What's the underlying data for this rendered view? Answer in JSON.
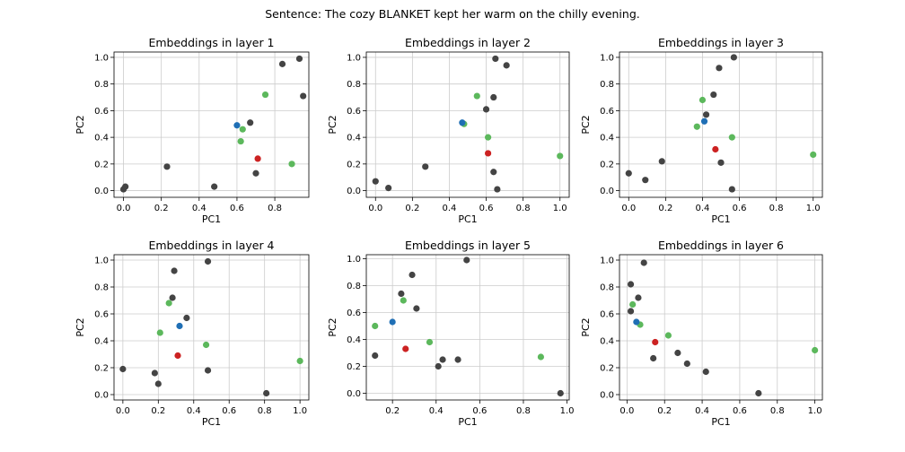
{
  "suptitle": "Sentence: The cozy BLANKET kept her warm on the chilly evening.",
  "colors": {
    "other": "#444444",
    "green": "#5cb85c",
    "blue": "#1f6fb5",
    "red": "#cc2222",
    "grid": "#cccccc"
  },
  "chart_data": [
    {
      "type": "scatter",
      "title": "Embeddings in layer 1",
      "xlabel": "PC1",
      "ylabel": "PC2",
      "xlim": [
        -0.05,
        0.98
      ],
      "ylim": [
        -0.05,
        1.04
      ],
      "xticks": [
        0.0,
        0.2,
        0.4,
        0.6,
        0.8
      ],
      "yticks": [
        0.0,
        0.2,
        0.4,
        0.6,
        0.8,
        1.0
      ],
      "tick_labels_x": [
        "0.0",
        "0.2",
        "0.4",
        "0.6",
        "0.8"
      ],
      "tick_labels_y": [
        "0.0",
        "0.2",
        "0.4",
        "0.6",
        "0.8",
        "1.0"
      ],
      "grid": true,
      "points": [
        {
          "x": 0.0,
          "y": 0.01,
          "c": "other"
        },
        {
          "x": 0.01,
          "y": 0.03,
          "c": "other"
        },
        {
          "x": 0.23,
          "y": 0.18,
          "c": "other"
        },
        {
          "x": 0.48,
          "y": 0.03,
          "c": "other"
        },
        {
          "x": 0.67,
          "y": 0.51,
          "c": "other"
        },
        {
          "x": 0.7,
          "y": 0.13,
          "c": "other"
        },
        {
          "x": 0.84,
          "y": 0.95,
          "c": "other"
        },
        {
          "x": 0.93,
          "y": 0.99,
          "c": "other"
        },
        {
          "x": 0.95,
          "y": 0.71,
          "c": "other"
        },
        {
          "x": 0.62,
          "y": 0.37,
          "c": "green"
        },
        {
          "x": 0.63,
          "y": 0.46,
          "c": "green"
        },
        {
          "x": 0.75,
          "y": 0.72,
          "c": "green"
        },
        {
          "x": 0.89,
          "y": 0.2,
          "c": "green"
        },
        {
          "x": 0.6,
          "y": 0.49,
          "c": "blue"
        },
        {
          "x": 0.71,
          "y": 0.24,
          "c": "red"
        }
      ]
    },
    {
      "type": "scatter",
      "title": "Embeddings in layer 2",
      "xlabel": "PC1",
      "ylabel": "PC2",
      "xlim": [
        -0.05,
        1.05
      ],
      "ylim": [
        -0.05,
        1.04
      ],
      "xticks": [
        0.0,
        0.2,
        0.4,
        0.6,
        0.8,
        1.0
      ],
      "yticks": [
        0.0,
        0.2,
        0.4,
        0.6,
        0.8,
        1.0
      ],
      "tick_labels_x": [
        "0.0",
        "0.2",
        "0.4",
        "0.6",
        "0.8",
        "1.0"
      ],
      "tick_labels_y": [
        "0.0",
        "0.2",
        "0.4",
        "0.6",
        "0.8",
        "1.0"
      ],
      "grid": true,
      "points": [
        {
          "x": 0.0,
          "y": 0.07,
          "c": "other"
        },
        {
          "x": 0.07,
          "y": 0.02,
          "c": "other"
        },
        {
          "x": 0.27,
          "y": 0.18,
          "c": "other"
        },
        {
          "x": 0.6,
          "y": 0.61,
          "c": "other"
        },
        {
          "x": 0.64,
          "y": 0.7,
          "c": "other"
        },
        {
          "x": 0.65,
          "y": 0.99,
          "c": "other"
        },
        {
          "x": 0.71,
          "y": 0.94,
          "c": "other"
        },
        {
          "x": 0.64,
          "y": 0.14,
          "c": "other"
        },
        {
          "x": 0.66,
          "y": 0.01,
          "c": "other"
        },
        {
          "x": 0.48,
          "y": 0.5,
          "c": "green"
        },
        {
          "x": 0.55,
          "y": 0.71,
          "c": "green"
        },
        {
          "x": 0.61,
          "y": 0.4,
          "c": "green"
        },
        {
          "x": 1.0,
          "y": 0.26,
          "c": "green"
        },
        {
          "x": 0.47,
          "y": 0.51,
          "c": "blue"
        },
        {
          "x": 0.61,
          "y": 0.28,
          "c": "red"
        }
      ]
    },
    {
      "type": "scatter",
      "title": "Embeddings in layer 3",
      "xlabel": "PC1",
      "ylabel": "PC2",
      "xlim": [
        -0.05,
        1.05
      ],
      "ylim": [
        -0.05,
        1.04
      ],
      "xticks": [
        0.0,
        0.2,
        0.4,
        0.6,
        0.8,
        1.0
      ],
      "yticks": [
        0.0,
        0.2,
        0.4,
        0.6,
        0.8,
        1.0
      ],
      "tick_labels_x": [
        "0.0",
        "0.2",
        "0.4",
        "0.6",
        "0.8",
        "1.0"
      ],
      "tick_labels_y": [
        "0.0",
        "0.2",
        "0.4",
        "0.6",
        "0.8",
        "1.0"
      ],
      "grid": true,
      "points": [
        {
          "x": 0.0,
          "y": 0.13,
          "c": "other"
        },
        {
          "x": 0.09,
          "y": 0.08,
          "c": "other"
        },
        {
          "x": 0.18,
          "y": 0.22,
          "c": "other"
        },
        {
          "x": 0.42,
          "y": 0.57,
          "c": "other"
        },
        {
          "x": 0.46,
          "y": 0.72,
          "c": "other"
        },
        {
          "x": 0.49,
          "y": 0.92,
          "c": "other"
        },
        {
          "x": 0.57,
          "y": 1.0,
          "c": "other"
        },
        {
          "x": 0.5,
          "y": 0.21,
          "c": "other"
        },
        {
          "x": 0.56,
          "y": 0.01,
          "c": "other"
        },
        {
          "x": 0.37,
          "y": 0.48,
          "c": "green"
        },
        {
          "x": 0.4,
          "y": 0.68,
          "c": "green"
        },
        {
          "x": 0.56,
          "y": 0.4,
          "c": "green"
        },
        {
          "x": 1.0,
          "y": 0.27,
          "c": "green"
        },
        {
          "x": 0.41,
          "y": 0.52,
          "c": "blue"
        },
        {
          "x": 0.47,
          "y": 0.31,
          "c": "red"
        }
      ]
    },
    {
      "type": "scatter",
      "title": "Embeddings in layer 4",
      "xlabel": "PC1",
      "ylabel": "PC2",
      "xlim": [
        -0.05,
        1.05
      ],
      "ylim": [
        -0.04,
        1.04
      ],
      "xticks": [
        0.0,
        0.2,
        0.4,
        0.6,
        0.8,
        1.0
      ],
      "yticks": [
        0.0,
        0.2,
        0.4,
        0.6,
        0.8,
        1.0
      ],
      "tick_labels_x": [
        "0.0",
        "0.2",
        "0.4",
        "0.6",
        "0.8",
        "1.0"
      ],
      "tick_labels_y": [
        "0.0",
        "0.2",
        "0.4",
        "0.6",
        "0.8",
        "1.0"
      ],
      "grid": true,
      "points": [
        {
          "x": 0.0,
          "y": 0.19,
          "c": "other"
        },
        {
          "x": 0.18,
          "y": 0.16,
          "c": "other"
        },
        {
          "x": 0.2,
          "y": 0.08,
          "c": "other"
        },
        {
          "x": 0.28,
          "y": 0.72,
          "c": "other"
        },
        {
          "x": 0.29,
          "y": 0.92,
          "c": "other"
        },
        {
          "x": 0.36,
          "y": 0.57,
          "c": "other"
        },
        {
          "x": 0.48,
          "y": 0.99,
          "c": "other"
        },
        {
          "x": 0.48,
          "y": 0.18,
          "c": "other"
        },
        {
          "x": 0.81,
          "y": 0.01,
          "c": "other"
        },
        {
          "x": 0.21,
          "y": 0.46,
          "c": "green"
        },
        {
          "x": 0.26,
          "y": 0.68,
          "c": "green"
        },
        {
          "x": 0.47,
          "y": 0.37,
          "c": "green"
        },
        {
          "x": 1.0,
          "y": 0.25,
          "c": "green"
        },
        {
          "x": 0.32,
          "y": 0.51,
          "c": "blue"
        },
        {
          "x": 0.31,
          "y": 0.29,
          "c": "red"
        }
      ]
    },
    {
      "type": "scatter",
      "title": "Embeddings in layer 5",
      "xlabel": "PC1",
      "ylabel": "PC2",
      "xlim": [
        0.08,
        1.01
      ],
      "ylim": [
        -0.05,
        1.03
      ],
      "xticks": [
        0.2,
        0.4,
        0.6,
        0.8,
        1.0
      ],
      "yticks": [
        0.0,
        0.2,
        0.4,
        0.6,
        0.8,
        1.0
      ],
      "tick_labels_x": [
        "0.2",
        "0.4",
        "0.6",
        "0.8",
        "1.0"
      ],
      "tick_labels_y": [
        "0.0",
        "0.2",
        "0.4",
        "0.6",
        "0.8",
        "1.0"
      ],
      "grid": true,
      "points": [
        {
          "x": 0.12,
          "y": 0.28,
          "c": "other"
        },
        {
          "x": 0.24,
          "y": 0.74,
          "c": "other"
        },
        {
          "x": 0.29,
          "y": 0.88,
          "c": "other"
        },
        {
          "x": 0.31,
          "y": 0.63,
          "c": "other"
        },
        {
          "x": 0.41,
          "y": 0.2,
          "c": "other"
        },
        {
          "x": 0.43,
          "y": 0.25,
          "c": "other"
        },
        {
          "x": 0.5,
          "y": 0.25,
          "c": "other"
        },
        {
          "x": 0.54,
          "y": 0.99,
          "c": "other"
        },
        {
          "x": 0.97,
          "y": 0.0,
          "c": "other"
        },
        {
          "x": 0.12,
          "y": 0.5,
          "c": "green"
        },
        {
          "x": 0.25,
          "y": 0.69,
          "c": "green"
        },
        {
          "x": 0.37,
          "y": 0.38,
          "c": "green"
        },
        {
          "x": 0.88,
          "y": 0.27,
          "c": "green"
        },
        {
          "x": 0.2,
          "y": 0.53,
          "c": "blue"
        },
        {
          "x": 0.26,
          "y": 0.33,
          "c": "red"
        }
      ]
    },
    {
      "type": "scatter",
      "title": "Embeddings in layer 6",
      "xlabel": "PC1",
      "ylabel": "PC2",
      "xlim": [
        -0.04,
        1.04
      ],
      "ylim": [
        -0.04,
        1.04
      ],
      "xticks": [
        0.0,
        0.2,
        0.4,
        0.6,
        0.8,
        1.0
      ],
      "yticks": [
        0.0,
        0.2,
        0.4,
        0.6,
        0.8,
        1.0
      ],
      "tick_labels_x": [
        "0.0",
        "0.2",
        "0.4",
        "0.6",
        "0.8",
        "1.0"
      ],
      "tick_labels_y": [
        "0.0",
        "0.2",
        "0.4",
        "0.6",
        "0.8",
        "1.0"
      ],
      "grid": true,
      "points": [
        {
          "x": 0.02,
          "y": 0.62,
          "c": "other"
        },
        {
          "x": 0.02,
          "y": 0.82,
          "c": "other"
        },
        {
          "x": 0.06,
          "y": 0.72,
          "c": "other"
        },
        {
          "x": 0.09,
          "y": 0.98,
          "c": "other"
        },
        {
          "x": 0.14,
          "y": 0.27,
          "c": "other"
        },
        {
          "x": 0.27,
          "y": 0.31,
          "c": "other"
        },
        {
          "x": 0.32,
          "y": 0.23,
          "c": "other"
        },
        {
          "x": 0.42,
          "y": 0.17,
          "c": "other"
        },
        {
          "x": 0.7,
          "y": 0.01,
          "c": "other"
        },
        {
          "x": 0.03,
          "y": 0.67,
          "c": "green"
        },
        {
          "x": 0.07,
          "y": 0.52,
          "c": "green"
        },
        {
          "x": 0.22,
          "y": 0.44,
          "c": "green"
        },
        {
          "x": 1.0,
          "y": 0.33,
          "c": "green"
        },
        {
          "x": 0.05,
          "y": 0.54,
          "c": "blue"
        },
        {
          "x": 0.15,
          "y": 0.39,
          "c": "red"
        }
      ]
    }
  ]
}
